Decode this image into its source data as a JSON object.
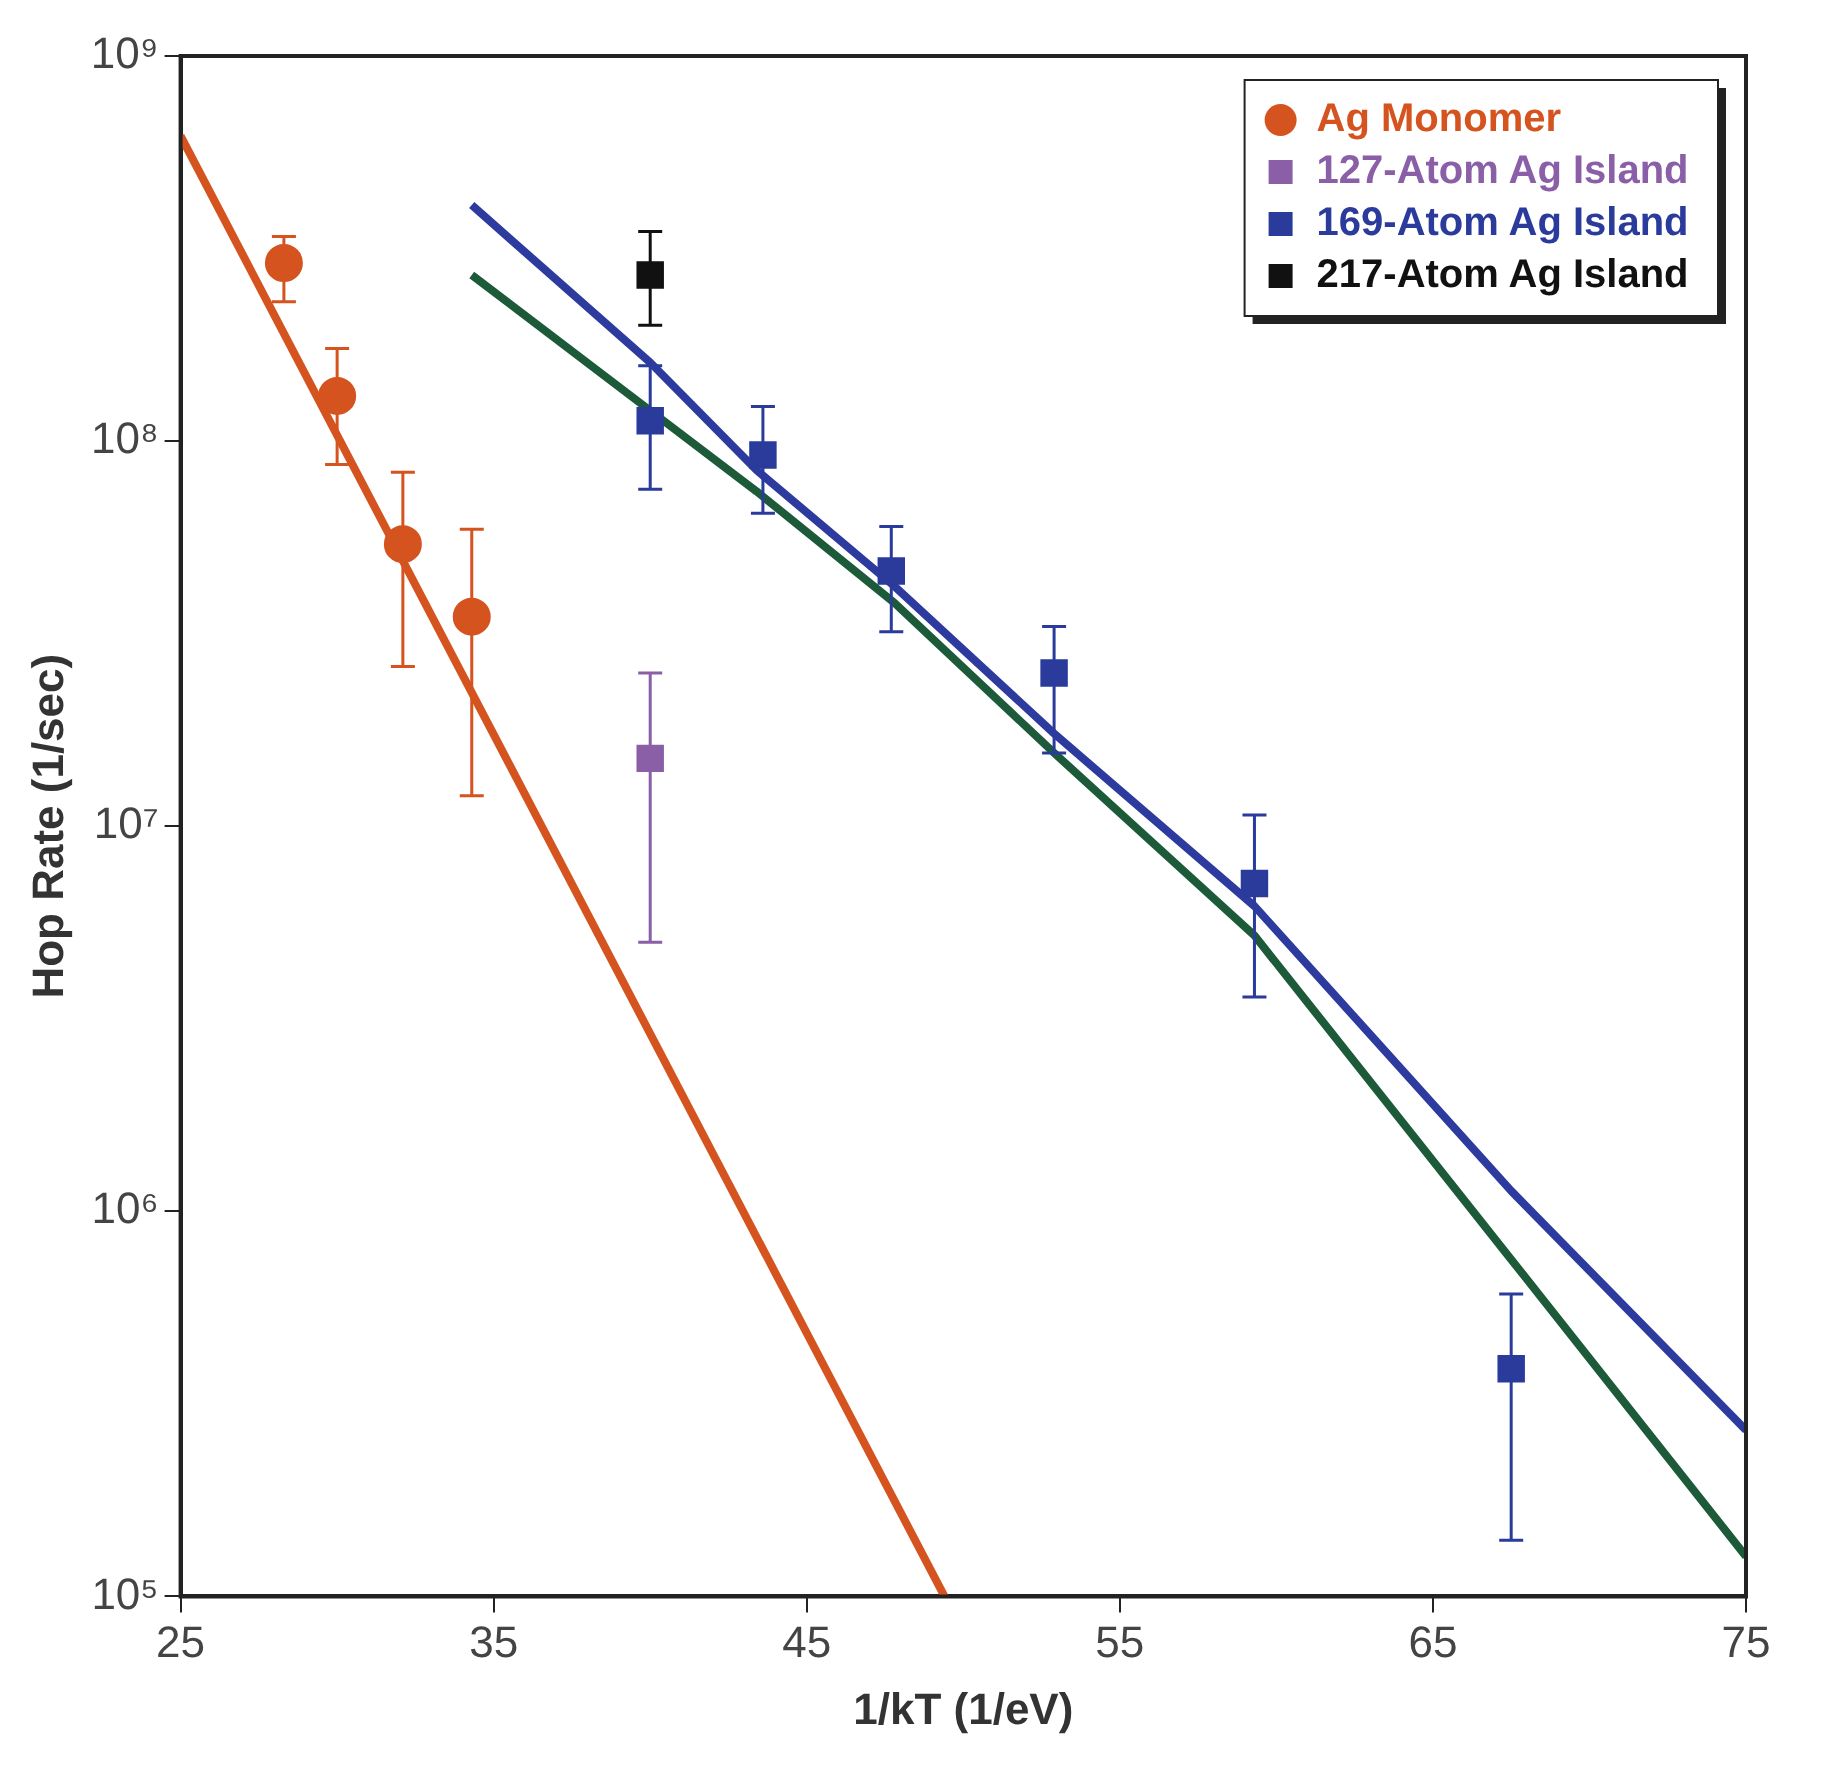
{
  "chart_data": {
    "type": "scatter",
    "xlabel": "1/kT (1/eV)",
    "ylabel": "Hop Rate (1/sec)",
    "log": "y",
    "xlim": [
      25,
      75
    ],
    "xticks": [
      25,
      35,
      45,
      55,
      65,
      75
    ],
    "ylim": [
      100000,
      1000000000
    ],
    "yticks": [
      {
        "value": 100000,
        "label": "10⁵"
      },
      {
        "value": 1000000,
        "label": "10⁶"
      },
      {
        "value": 10000000,
        "label": "10⁷"
      },
      {
        "value": 100000000,
        "label": "10⁸"
      },
      {
        "value": 1000000000,
        "label": "10⁹"
      }
    ],
    "grid": false,
    "legend": "top right",
    "series": [
      {
        "name": "Ag Monomer",
        "type": "scatter",
        "marker": "circle",
        "color": "#d4531f",
        "x": [
          28.3,
          30.0,
          32.1,
          34.3
        ],
        "values": [
          290000000,
          131000000,
          54000000,
          35000000
        ],
        "errors": [
          [
            230000000,
            340000000
          ],
          [
            87000000,
            174000000
          ],
          [
            26000000,
            83000000
          ],
          [
            12000000,
            59000000
          ]
        ]
      },
      {
        "name": "127-Atom Ag Island",
        "type": "scatter",
        "marker": "square",
        "color": "#8a5fa8",
        "x": [
          40
        ],
        "values": [
          15000000
        ],
        "errors": [
          [
            5000000,
            25000000
          ]
        ]
      },
      {
        "name": "169-Atom Ag Island",
        "type": "scatter",
        "marker": "square",
        "color": "#2a3b9c",
        "x": [
          40,
          43.6,
          47.7,
          52.9,
          59.3,
          67.5
        ],
        "values": [
          113000000,
          92000000,
          46000000,
          25000000,
          7100000,
          390000
        ],
        "errors": [
          [
            75000000,
            157000000
          ],
          [
            65000000,
            123000000
          ],
          [
            32000000,
            60000000
          ],
          [
            15500000,
            33000000
          ],
          [
            3600000,
            10700000
          ],
          [
            140000,
            610000
          ]
        ]
      },
      {
        "name": "217-Atom Ag Island",
        "type": "scatter",
        "marker": "square",
        "color": "#111111",
        "x": [
          40
        ],
        "values": [
          270000000
        ],
        "errors": [
          [
            200000000,
            350000000
          ]
        ]
      },
      {
        "type": "line",
        "marker": "none",
        "color": "#d4531f",
        "x": [
          25,
          49.4
        ],
        "values": [
          620000000,
          100000
        ]
      },
      {
        "type": "line",
        "marker": "none",
        "color": "#2e3b9e",
        "x": [
          34.3,
          40,
          43.4,
          47.8,
          52.9,
          59.3,
          67.5,
          75
        ],
        "values": [
          410000000,
          160000000,
          84000000,
          42000000,
          17400000,
          6200000,
          1130000,
          270000
        ]
      },
      {
        "type": "line",
        "marker": "none",
        "color": "#1d5a3a",
        "x": [
          34.3,
          40,
          43.4,
          47.8,
          52.9,
          59.3,
          67.5,
          75
        ],
        "values": [
          270000000,
          120000000,
          74000000,
          38000000,
          15500000,
          5200000,
          750000,
          127000
        ]
      }
    ]
  }
}
